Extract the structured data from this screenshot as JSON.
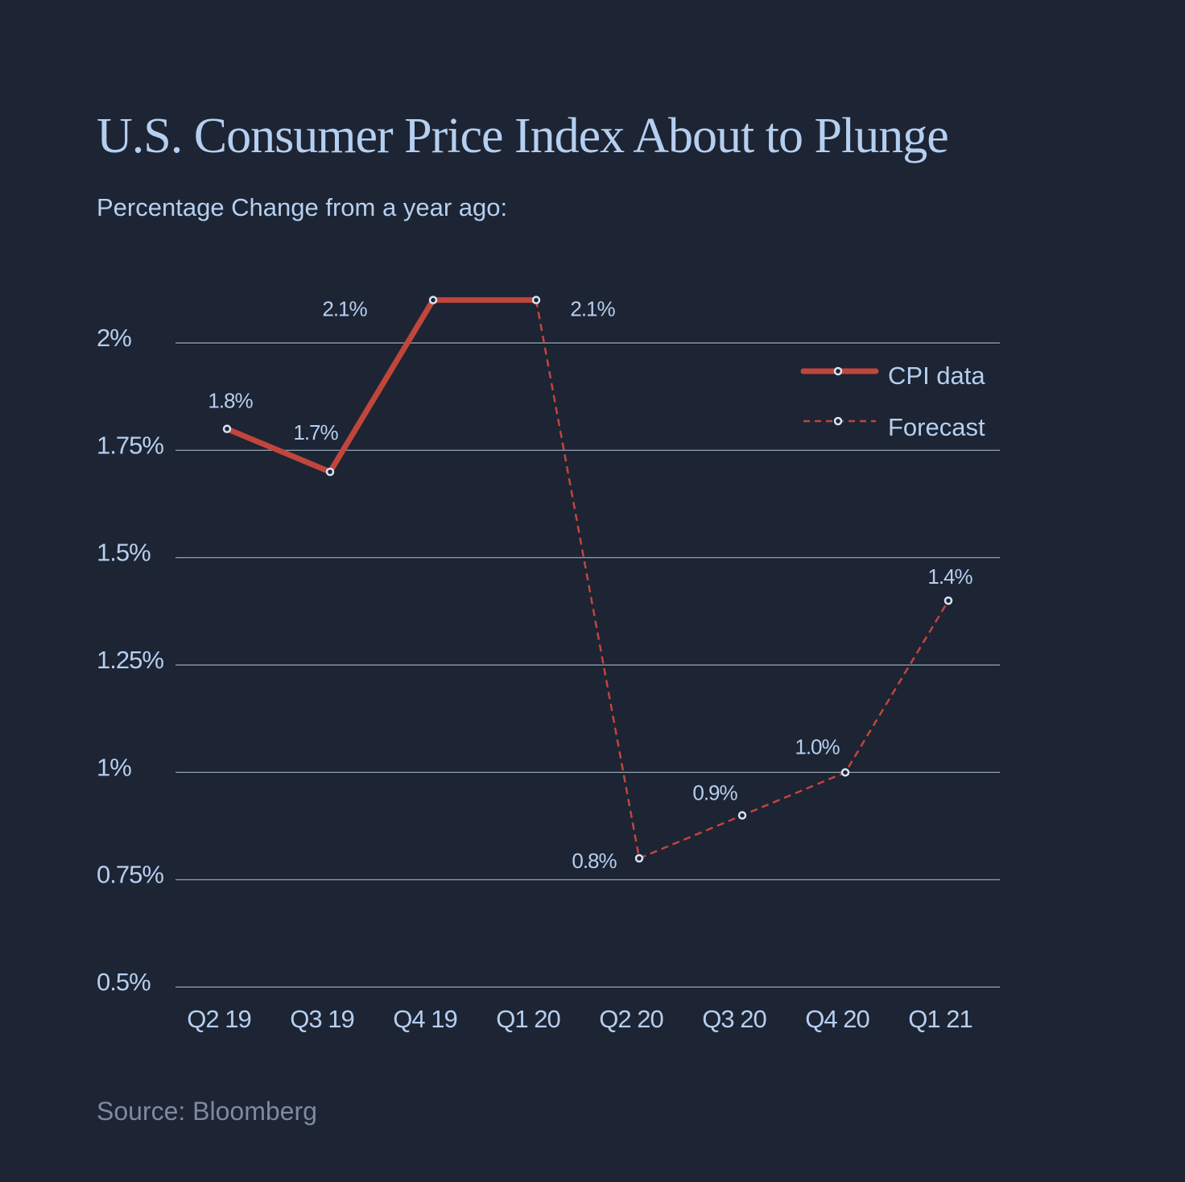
{
  "chart_data": {
    "type": "line",
    "title": "U.S. Consumer Price Index About to Plunge",
    "subtitle": "Percentage Change from a year ago:",
    "source": "Source: Bloomberg",
    "categories": [
      "Q2 19",
      "Q3 19",
      "Q4 19",
      "Q1 20",
      "Q2 20",
      "Q3 20",
      "Q4 20",
      "Q1 21"
    ],
    "series": [
      {
        "name": "CPI data",
        "style": "solid",
        "color": "#c0463b",
        "x": [
          "Q2 19",
          "Q3 19",
          "Q4 19",
          "Q1 20"
        ],
        "values": [
          1.8,
          1.7,
          2.1,
          2.1
        ]
      },
      {
        "name": "Forecast",
        "style": "dashed",
        "color": "#c0463b",
        "x": [
          "Q1 20",
          "Q2 20",
          "Q3 20",
          "Q4 20",
          "Q1 21"
        ],
        "values": [
          2.1,
          0.8,
          0.9,
          1.0,
          1.4
        ]
      }
    ],
    "data_labels": [
      {
        "x": "Q2 19",
        "text": "1.8%"
      },
      {
        "x": "Q3 19",
        "text": "1.7%"
      },
      {
        "x": "Q4 19",
        "text": "2.1%"
      },
      {
        "x": "Q1 20",
        "text": "2.1%"
      },
      {
        "x": "Q2 20",
        "text": "0.8%"
      },
      {
        "x": "Q3 20",
        "text": "0.9%"
      },
      {
        "x": "Q4 20",
        "text": "1.0%"
      },
      {
        "x": "Q1 21",
        "text": "1.4%"
      }
    ],
    "yticks": [
      0.5,
      0.75,
      1,
      1.25,
      1.5,
      1.75,
      2
    ],
    "ytick_labels": [
      "0.5%",
      "0.75%",
      "1%",
      "1.25%",
      "1.5%",
      "1.75%",
      "2%"
    ],
    "ylim": [
      0.5,
      2.1
    ],
    "xlabel": "",
    "ylabel": "",
    "grid": true,
    "legend": {
      "position": "top-right",
      "entries": [
        "CPI data",
        "Forecast"
      ]
    },
    "colors": {
      "background": "#1d2433",
      "text": "#b5cff0",
      "grid": "#8a97ad",
      "line": "#c0463b",
      "marker_fill": "#1d2433",
      "marker_stroke": "#d6e4f5",
      "source": "#7d8aa0"
    }
  }
}
